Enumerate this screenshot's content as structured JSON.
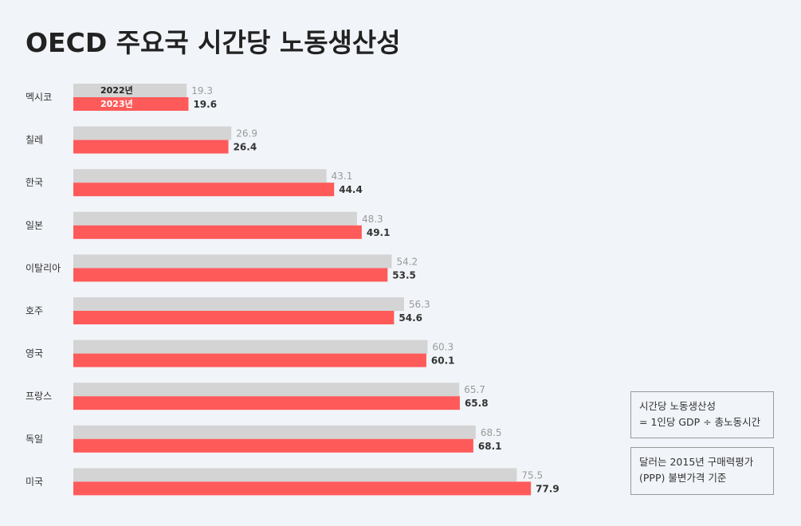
{
  "chart_data": {
    "type": "bar",
    "orientation": "horizontal",
    "title": "OECD 주요국 시간당 노동생산성",
    "categories": [
      "멕시코",
      "칠레",
      "한국",
      "일본",
      "이탈리아",
      "호주",
      "영국",
      "프랑스",
      "독일",
      "미국"
    ],
    "series": [
      {
        "name": "2022년",
        "color": "#d4d4d4",
        "values": [
          19.3,
          26.9,
          43.1,
          48.3,
          54.2,
          56.3,
          60.3,
          65.7,
          68.5,
          75.5
        ],
        "labels": [
          "19.3",
          "26.9",
          "43.1",
          "48.3",
          "54.2",
          "56.3",
          "60.3",
          "65.7",
          "68.5",
          "75.5"
        ]
      },
      {
        "name": "2023년",
        "color": "#ff5a5a",
        "values": [
          19.6,
          26.4,
          44.4,
          49.1,
          53.5,
          54.6,
          60.1,
          65.8,
          68.1,
          77.9
        ],
        "labels": [
          "19.6",
          "26.4",
          "44.4",
          "49.1",
          "53.5",
          "54.6",
          "60.1",
          "65.8",
          "68.1",
          "77.9"
        ]
      }
    ],
    "legend_placement": "inside-first-bar",
    "grid": false
  },
  "notes": {
    "formula": [
      "시간당 노동생산성",
      "= 1인당 GDP ÷ 총노동시간"
    ],
    "basis": [
      "달러는 2015년 구매력평가",
      "(PPP) 불변가격 기준"
    ]
  }
}
